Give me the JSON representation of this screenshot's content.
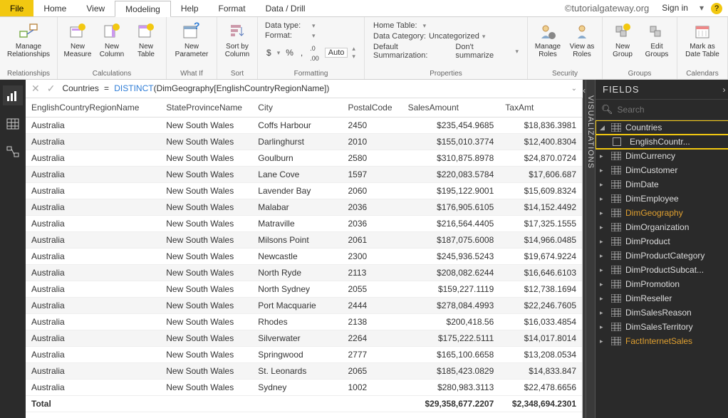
{
  "menubar": {
    "file": "File",
    "tabs": [
      "Home",
      "View",
      "Modeling",
      "Help",
      "Format",
      "Data / Drill"
    ],
    "active_index": 2,
    "watermark": "©tutorialgateway.org",
    "signin": "Sign in",
    "help_badge": "?"
  },
  "ribbon": {
    "relationships": {
      "manage": "Manage\nRelationships",
      "group": "Relationships"
    },
    "calculations": {
      "measure": "New\nMeasure",
      "column": "New\nColumn",
      "table": "New\nTable",
      "group": "Calculations"
    },
    "whatif": {
      "param": "New\nParameter",
      "group": "What If"
    },
    "sort": {
      "sortby": "Sort by\nColumn",
      "group": "Sort"
    },
    "formatting": {
      "datatype_lbl": "Data type:",
      "datatype_val": "",
      "format_lbl": "Format:",
      "format_val": "",
      "currency": "$",
      "percent": "%",
      "comma": ",",
      "decimals_lbl": ".0",
      "auto": "Auto",
      "group": "Formatting"
    },
    "properties": {
      "hometable_lbl": "Home Table:",
      "hometable_val": "",
      "datacat_lbl": "Data Category:",
      "datacat_val": "Uncategorized",
      "summ_lbl": "Default Summarization:",
      "summ_val": "Don't summarize",
      "group": "Properties"
    },
    "security": {
      "manage": "Manage\nRoles",
      "viewas": "View as\nRoles",
      "group": "Security"
    },
    "groups": {
      "new": "New\nGroup",
      "edit": "Edit\nGroups",
      "group": "Groups"
    },
    "calendars": {
      "mark": "Mark as\nDate Table",
      "group": "Calendars"
    }
  },
  "formula": {
    "lhs": "Countries",
    "eq": "=",
    "func": "DISTINCT",
    "arg": "(DimGeography[EnglishCountryRegionName])"
  },
  "grid": {
    "columns": [
      "EnglishCountryRegionName",
      "StateProvinceName",
      "City",
      "PostalCode",
      "SalesAmount",
      "TaxAmt"
    ],
    "rows": [
      [
        "Australia",
        "New South Wales",
        "Coffs Harbour",
        "2450",
        "$235,454.9685",
        "$18,836.3981"
      ],
      [
        "Australia",
        "New South Wales",
        "Darlinghurst",
        "2010",
        "$155,010.3774",
        "$12,400.8304"
      ],
      [
        "Australia",
        "New South Wales",
        "Goulburn",
        "2580",
        "$310,875.8978",
        "$24,870.0724"
      ],
      [
        "Australia",
        "New South Wales",
        "Lane Cove",
        "1597",
        "$220,083.5784",
        "$17,606.687"
      ],
      [
        "Australia",
        "New South Wales",
        "Lavender Bay",
        "2060",
        "$195,122.9001",
        "$15,609.8324"
      ],
      [
        "Australia",
        "New South Wales",
        "Malabar",
        "2036",
        "$176,905.6105",
        "$14,152.4492"
      ],
      [
        "Australia",
        "New South Wales",
        "Matraville",
        "2036",
        "$216,564.4405",
        "$17,325.1555"
      ],
      [
        "Australia",
        "New South Wales",
        "Milsons Point",
        "2061",
        "$187,075.6008",
        "$14,966.0485"
      ],
      [
        "Australia",
        "New South Wales",
        "Newcastle",
        "2300",
        "$245,936.5243",
        "$19,674.9224"
      ],
      [
        "Australia",
        "New South Wales",
        "North Ryde",
        "2113",
        "$208,082.6244",
        "$16,646.6103"
      ],
      [
        "Australia",
        "New South Wales",
        "North Sydney",
        "2055",
        "$159,227.1119",
        "$12,738.1694"
      ],
      [
        "Australia",
        "New South Wales",
        "Port Macquarie",
        "2444",
        "$278,084.4993",
        "$22,246.7605"
      ],
      [
        "Australia",
        "New South Wales",
        "Rhodes",
        "2138",
        "$200,418.56",
        "$16,033.4854"
      ],
      [
        "Australia",
        "New South Wales",
        "Silverwater",
        "2264",
        "$175,222.5111",
        "$14,017.8014"
      ],
      [
        "Australia",
        "New South Wales",
        "Springwood",
        "2777",
        "$165,100.6658",
        "$13,208.0534"
      ],
      [
        "Australia",
        "New South Wales",
        "St. Leonards",
        "2065",
        "$185,423.0829",
        "$14,833.847"
      ],
      [
        "Australia",
        "New South Wales",
        "Sydney",
        "1002",
        "$280,983.3113",
        "$22,478.6656"
      ]
    ],
    "total_label": "Total",
    "total_sales": "$29,358,677.2207",
    "total_tax": "$2,348,694.2301"
  },
  "right": {
    "viz_label": "VISUALIZATIONS",
    "fields_label": "FIELDS",
    "search_placeholder": "Search",
    "tables": [
      {
        "name": "Countries",
        "expanded": true,
        "highlight": true,
        "children": [
          {
            "name": "EnglishCountr...",
            "highlight": true
          }
        ]
      },
      {
        "name": "DimCurrency"
      },
      {
        "name": "DimCustomer"
      },
      {
        "name": "DimDate"
      },
      {
        "name": "DimEmployee"
      },
      {
        "name": "DimGeography",
        "dim": true
      },
      {
        "name": "DimOrganization"
      },
      {
        "name": "DimProduct"
      },
      {
        "name": "DimProductCategory"
      },
      {
        "name": "DimProductSubcat..."
      },
      {
        "name": "DimPromotion"
      },
      {
        "name": "DimReseller"
      },
      {
        "name": "DimSalesReason"
      },
      {
        "name": "DimSalesTerritory"
      },
      {
        "name": "FactInternetSales",
        "dim": true
      }
    ]
  }
}
